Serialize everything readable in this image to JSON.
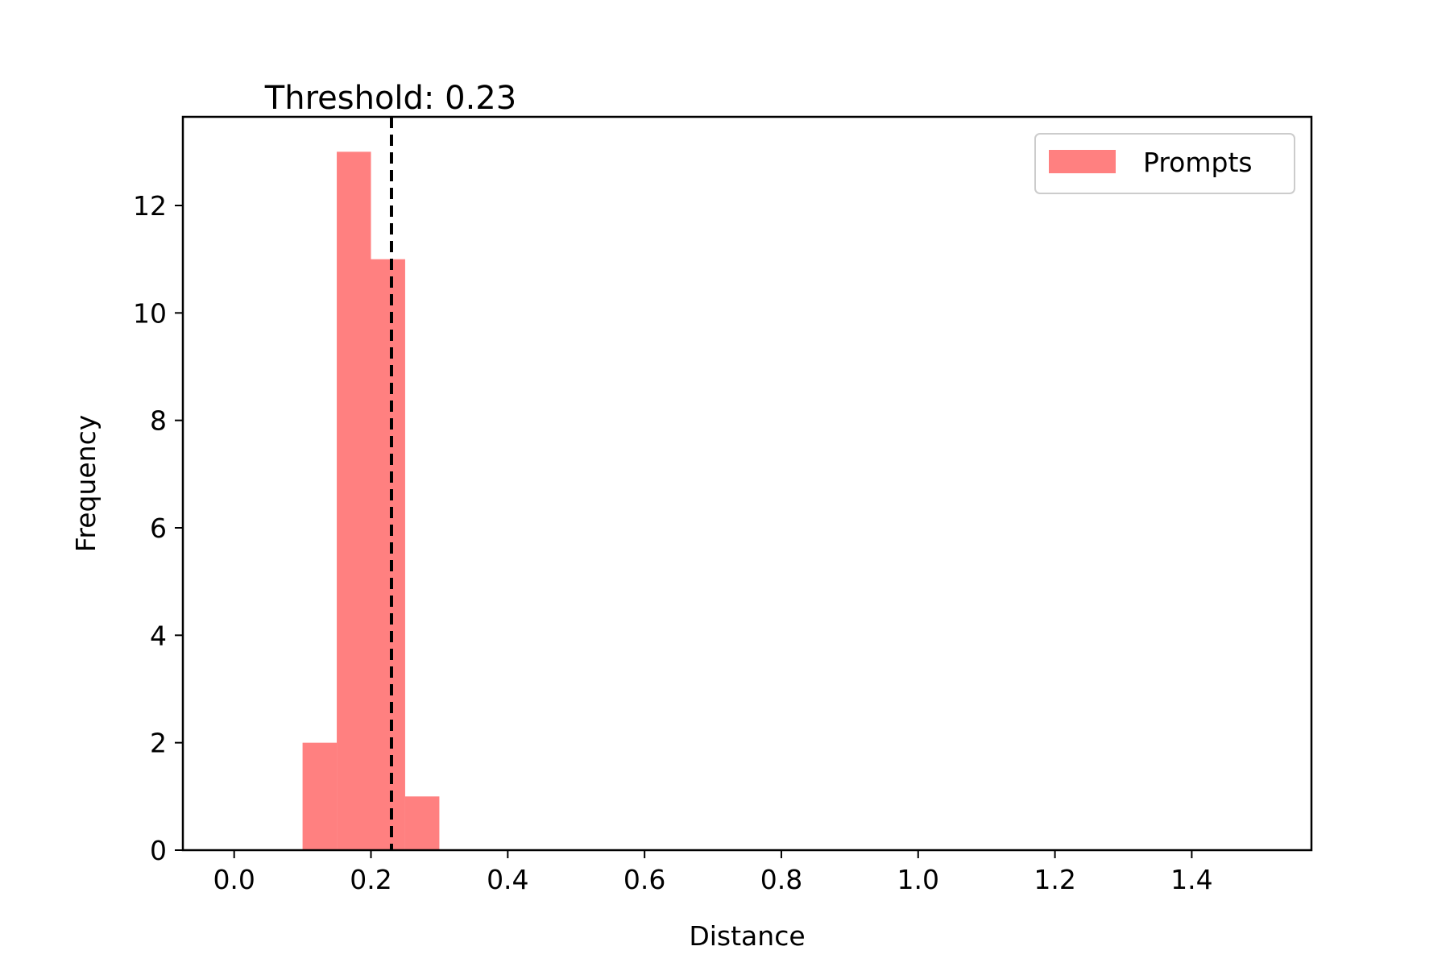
{
  "chart_data": {
    "type": "bar",
    "subtype": "histogram",
    "title": "Threshold: 0.23",
    "xlabel": "Distance",
    "ylabel": "Frequency",
    "xlim": [
      -0.075,
      1.575
    ],
    "ylim": [
      0,
      13.65
    ],
    "xticks": [
      0.0,
      0.2,
      0.4,
      0.6,
      0.8,
      1.0,
      1.2,
      1.4
    ],
    "xtick_labels": [
      "0.0",
      "0.2",
      "0.4",
      "0.6",
      "0.8",
      "1.0",
      "1.2",
      "1.4"
    ],
    "yticks": [
      0,
      2,
      4,
      6,
      8,
      10,
      12
    ],
    "ytick_labels": [
      "0",
      "2",
      "4",
      "6",
      "8",
      "10",
      "12"
    ],
    "grid": false,
    "legend_placement": "top-right",
    "series": [
      {
        "name": "Prompts",
        "color": "#ff8080",
        "bins": [
          {
            "start": 0.1,
            "end": 0.15,
            "value": 2
          },
          {
            "start": 0.15,
            "end": 0.2,
            "value": 13
          },
          {
            "start": 0.2,
            "end": 0.25,
            "value": 11
          },
          {
            "start": 0.25,
            "end": 0.3,
            "value": 1
          }
        ]
      }
    ],
    "threshold": {
      "value": 0.23,
      "style": "dashed",
      "color": "#000000"
    }
  }
}
